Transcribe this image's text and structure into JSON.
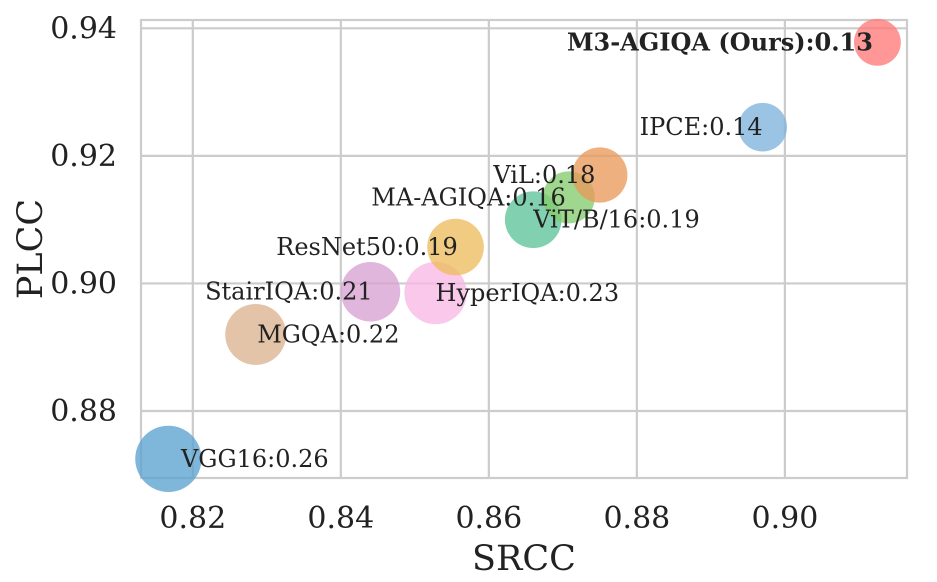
{
  "chart_data": {
    "type": "scatter",
    "title": "",
    "xlabel": "SRCC",
    "ylabel": "PLCC",
    "xlim": [
      0.813,
      0.9165
    ],
    "ylim": [
      0.8695,
      0.9413
    ],
    "xticks": [
      0.82,
      0.84,
      0.86,
      0.88,
      0.9
    ],
    "xtick_labels": [
      "0.82",
      "0.84",
      "0.86",
      "0.88",
      "0.90"
    ],
    "yticks": [
      0.88,
      0.9,
      0.92,
      0.94
    ],
    "ytick_labels": [
      "0.88",
      "0.90",
      "0.92",
      "0.94"
    ],
    "grid": true,
    "legend": "none",
    "points": [
      {
        "name": "VGG16",
        "label": "VGG16:0.26",
        "x": 0.8167,
        "y": 0.8725,
        "size": 0.26,
        "color": "#5ba3cf",
        "bold": false,
        "label_anchor": "start",
        "label_dx": 0.0017,
        "label_dy": 0
      },
      {
        "name": "MGQA",
        "label": "MGQA:0.22",
        "x": 0.8285,
        "y": 0.892,
        "size": 0.22,
        "color": "#ddb38f",
        "bold": false,
        "label_anchor": "start",
        "label_dx": 0.0002,
        "label_dy": 0
      },
      {
        "name": "StairIQA",
        "label": "StairIQA:0.21",
        "x": 0.844,
        "y": 0.8987,
        "size": 0.21,
        "color": "#d9a1d3",
        "bold": false,
        "label_anchor": "end",
        "label_dx": 0.0003,
        "label_dy": 0
      },
      {
        "name": "HyperIQA",
        "label": "HyperIQA:0.23",
        "x": 0.8528,
        "y": 0.8985,
        "size": 0.23,
        "color": "#f9b8e4",
        "bold": false,
        "label_anchor": "start",
        "label_dx": 0.0,
        "label_dy": 0
      },
      {
        "name": "ResNet50",
        "label": "ResNet50:0.19",
        "x": 0.8555,
        "y": 0.9057,
        "size": 0.19,
        "color": "#edbd5e",
        "bold": false,
        "label_anchor": "end",
        "label_dx": 0.0003,
        "label_dy": 0
      },
      {
        "name": "ViT/B/16",
        "label": "ViT/B/16:0.19",
        "x": 0.866,
        "y": 0.91,
        "size": 0.19,
        "color": "#5ec39a",
        "bold": false,
        "label_anchor": "start",
        "label_dx": 0.0,
        "label_dy": 0
      },
      {
        "name": "MA-AGIQA",
        "label": "MA-AGIQA:0.16",
        "x": 0.8708,
        "y": 0.9135,
        "size": 0.16,
        "color": "#85cc6e",
        "bold": false,
        "label_anchor": "end",
        "label_dx": -0.0004,
        "label_dy": 0
      },
      {
        "name": "ViL",
        "label": "ViL:0.18",
        "x": 0.875,
        "y": 0.917,
        "size": 0.18,
        "color": "#e99a5a",
        "bold": false,
        "label_anchor": "end",
        "label_dx": -0.0006,
        "label_dy": 0
      },
      {
        "name": "IPCE",
        "label": "IPCE:0.14",
        "x": 0.897,
        "y": 0.9245,
        "size": 0.14,
        "color": "#7fb3dc",
        "bold": false,
        "label_anchor": "end",
        "label_dx": 0.0,
        "label_dy": 0
      },
      {
        "name": "M3-AGIQA (Ours)",
        "label": "M3-AGIQA (Ours):0.13",
        "x": 0.9125,
        "y": 0.9378,
        "size": 0.13,
        "color": "#ff7a7a",
        "bold": true,
        "label_anchor": "end",
        "label_dx": -0.0006,
        "label_dy": 0
      }
    ]
  }
}
